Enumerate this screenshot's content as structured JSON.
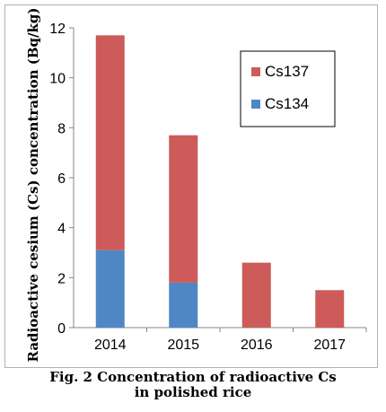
{
  "chart_data": {
    "type": "bar",
    "stacked": true,
    "categories": [
      "2014",
      "2015",
      "2016",
      "2017"
    ],
    "series": [
      {
        "name": "Cs134",
        "color": "#4f87c6",
        "values": [
          3.1,
          1.8,
          0,
          0
        ]
      },
      {
        "name": "Cs137",
        "color": "#cd5b59",
        "values": [
          8.6,
          5.9,
          2.6,
          1.5
        ]
      }
    ],
    "ylabel": "Radioactive cesium (Cs) concentration (Bq/kg)",
    "ylim": [
      0,
      12
    ],
    "yticks": [
      0,
      2,
      4,
      6,
      8,
      10,
      12
    ],
    "grid": false,
    "legend_position": "top-right"
  },
  "caption": {
    "line1": "Fig. 2 Concentration of radioactive Cs",
    "line2": "in polished rice"
  }
}
